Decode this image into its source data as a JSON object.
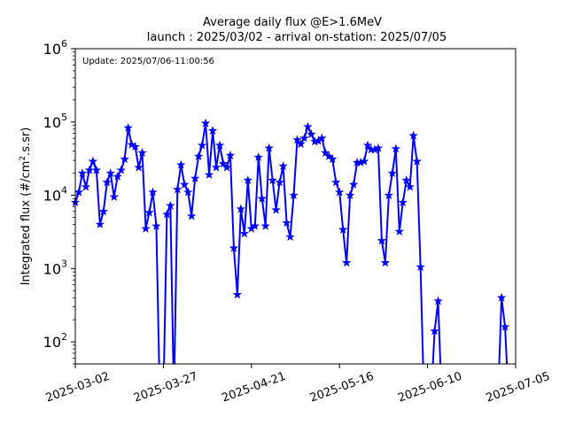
{
  "chart_data": {
    "type": "line",
    "title": "Average daily flux @E>1.6MeV",
    "subtitle": "launch : 2025/03/02 - arrival on-station: 2025/07/05",
    "ylabel_main": "Integrated flux (#/cm",
    "ylabel_sup": "2",
    "ylabel_tail": ".s.sr)",
    "annotation": "Update: 2025/07/06-11:00:56",
    "yscale": "log",
    "ylim": [
      50,
      1000000
    ],
    "yticks": [
      {
        "value": 100,
        "base": "10",
        "exp": "2"
      },
      {
        "value": 1000,
        "base": "10",
        "exp": "3"
      },
      {
        "value": 10000,
        "base": "10",
        "exp": "4"
      },
      {
        "value": 100000,
        "base": "10",
        "exp": "5"
      },
      {
        "value": 1000000,
        "base": "10",
        "exp": "6"
      }
    ],
    "xlim": [
      "2025-03-02",
      "2025-07-05"
    ],
    "xticks": [
      "2025-03-02",
      "2025-03-27",
      "2025-04-21",
      "2025-05-16",
      "2025-06-10",
      "2025-07-05"
    ],
    "grid": false,
    "series": [
      {
        "color": "#0000ff",
        "marker": "star",
        "x": [
          "2025-03-02",
          "2025-03-03",
          "2025-03-04",
          "2025-03-05",
          "2025-03-06",
          "2025-03-07",
          "2025-03-08",
          "2025-03-09",
          "2025-03-10",
          "2025-03-11",
          "2025-03-12",
          "2025-03-13",
          "2025-03-14",
          "2025-03-15",
          "2025-03-16",
          "2025-03-17",
          "2025-03-18",
          "2025-03-19",
          "2025-03-20",
          "2025-03-21",
          "2025-03-22",
          "2025-03-23",
          "2025-03-24",
          "2025-03-25",
          "2025-03-26",
          "2025-03-27",
          "2025-03-28",
          "2025-03-29",
          "2025-03-30",
          "2025-03-31",
          "2025-04-01",
          "2025-04-02",
          "2025-04-03",
          "2025-04-04",
          "2025-04-05",
          "2025-04-06",
          "2025-04-07",
          "2025-04-08",
          "2025-04-09",
          "2025-04-10",
          "2025-04-11",
          "2025-04-12",
          "2025-04-13",
          "2025-04-14",
          "2025-04-15",
          "2025-04-16",
          "2025-04-17",
          "2025-04-18",
          "2025-04-19",
          "2025-04-20",
          "2025-04-21",
          "2025-04-22",
          "2025-04-23",
          "2025-04-24",
          "2025-04-25",
          "2025-04-26",
          "2025-04-27",
          "2025-04-28",
          "2025-04-29",
          "2025-04-30",
          "2025-05-01",
          "2025-05-02",
          "2025-05-03",
          "2025-05-04",
          "2025-05-05",
          "2025-05-06",
          "2025-05-07",
          "2025-05-08",
          "2025-05-09",
          "2025-05-10",
          "2025-05-11",
          "2025-05-12",
          "2025-05-13",
          "2025-05-14",
          "2025-05-15",
          "2025-05-16",
          "2025-05-17",
          "2025-05-18",
          "2025-05-19",
          "2025-05-20",
          "2025-05-21",
          "2025-05-22",
          "2025-05-23",
          "2025-05-24",
          "2025-05-25",
          "2025-05-26",
          "2025-05-27",
          "2025-05-28",
          "2025-05-29",
          "2025-05-30",
          "2025-05-31",
          "2025-06-01",
          "2025-06-02",
          "2025-06-03",
          "2025-06-04",
          "2025-06-05",
          "2025-06-06",
          "2025-06-07",
          "2025-06-08",
          "2025-06-09",
          "2025-06-10",
          "2025-06-11",
          "2025-06-12",
          "2025-06-13",
          "2025-06-14",
          "2025-06-15",
          "2025-06-16",
          "2025-06-17",
          "2025-06-18",
          "2025-06-19",
          "2025-06-20",
          "2025-06-21",
          "2025-06-22",
          "2025-06-23",
          "2025-06-24",
          "2025-06-25",
          "2025-06-26",
          "2025-06-27",
          "2025-06-28",
          "2025-06-29",
          "2025-06-30",
          "2025-07-01",
          "2025-07-02",
          "2025-07-03",
          "2025-07-04",
          "2025-07-05"
        ],
        "y": [
          8000,
          11000,
          20000,
          13000,
          22000,
          29000,
          22000,
          4000,
          6000,
          15000,
          20000,
          9500,
          18000,
          22000,
          31000,
          83000,
          49000,
          46000,
          24000,
          38000,
          3500,
          5800,
          11000,
          3800,
          null,
          null,
          5500,
          7200,
          null,
          12000,
          26000,
          14000,
          11000,
          5200,
          17000,
          34000,
          48000,
          96000,
          19000,
          76000,
          24000,
          48000,
          27000,
          24000,
          35000,
          1900,
          440,
          6500,
          3000,
          16000,
          3500,
          3800,
          33000,
          9000,
          3800,
          44000,
          16000,
          6300,
          15000,
          25000,
          4200,
          2700,
          10000,
          57000,
          50000,
          60000,
          86000,
          68000,
          54000,
          55000,
          60000,
          38000,
          34000,
          31000,
          15000,
          11000,
          3400,
          1200,
          10000,
          14000,
          28000,
          28000,
          29000,
          48000,
          42000,
          42000,
          44000,
          2400,
          1200,
          10000,
          20000,
          43000,
          3200,
          8000,
          16000,
          13000,
          65000,
          29000,
          1050,
          null,
          null,
          null,
          140,
          360,
          null,
          null,
          null,
          null,
          null,
          null,
          null,
          null,
          null,
          null,
          null,
          null,
          null,
          null,
          null,
          null,
          null,
          400,
          160,
          null,
          null,
          null
        ]
      }
    ]
  }
}
